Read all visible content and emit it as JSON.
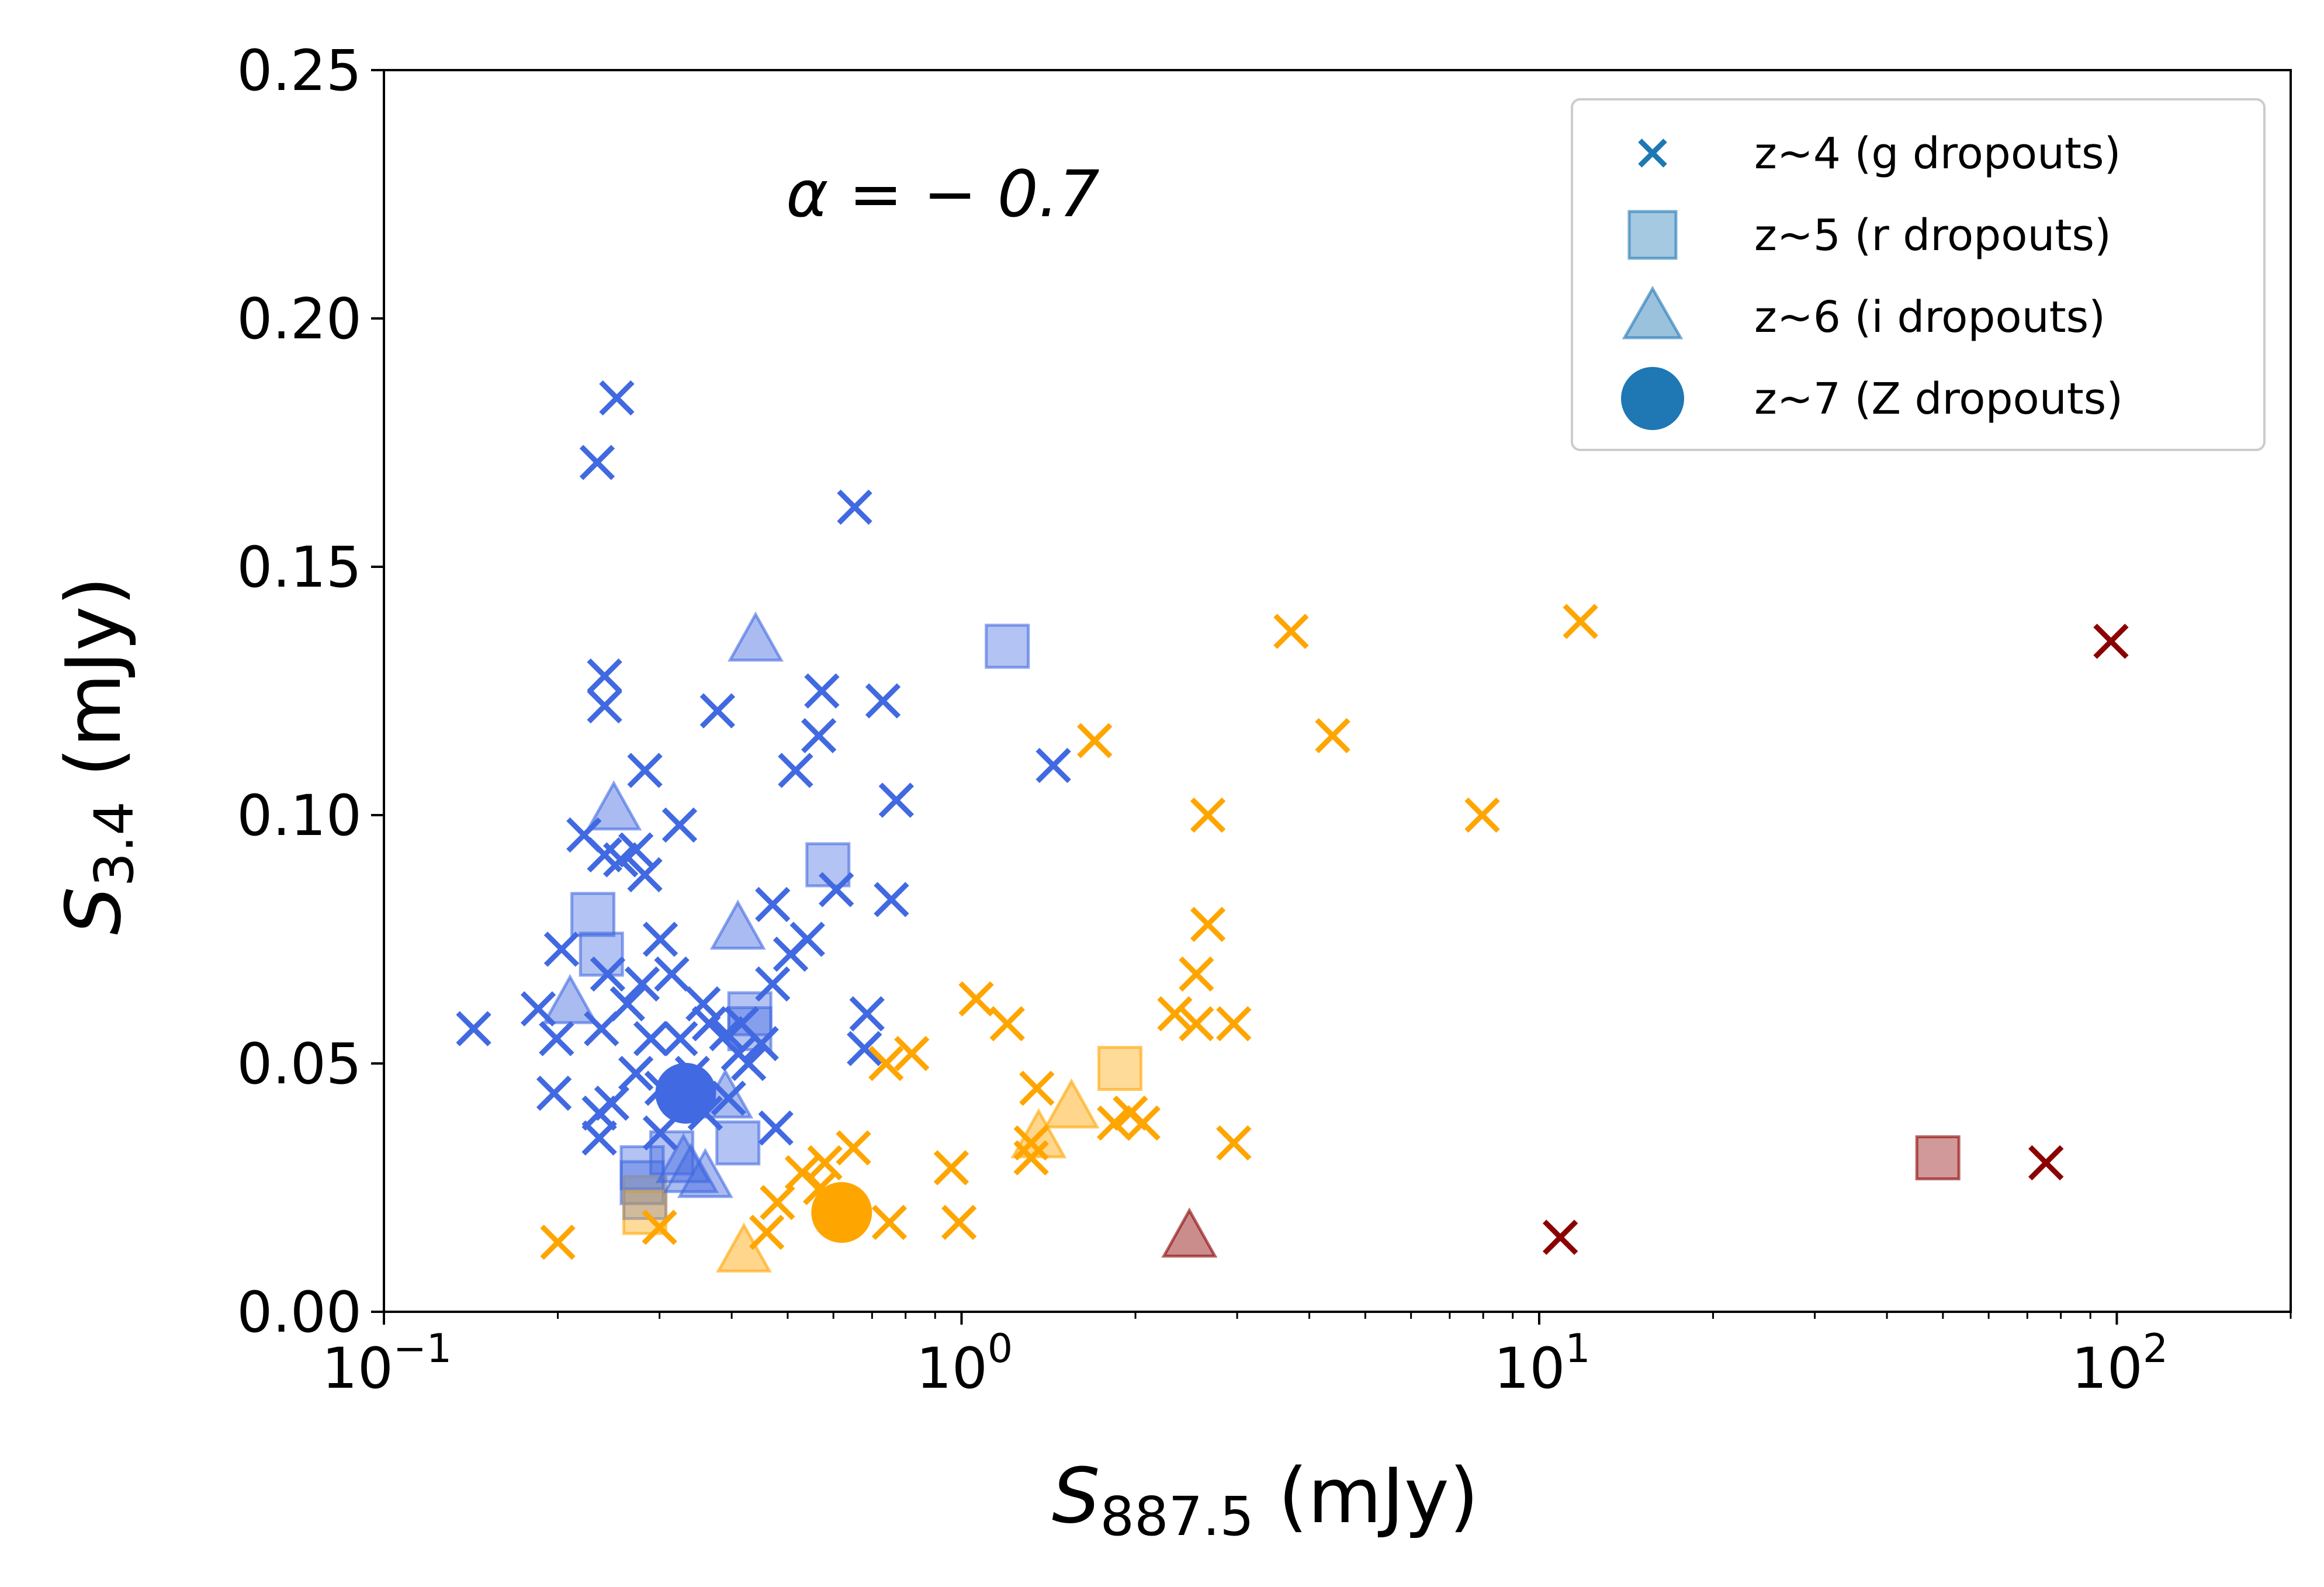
{
  "chart_data": {
    "type": "scatter",
    "title": "",
    "annotation": "α = − 0.7",
    "xlabel": {
      "symbol": "S",
      "sub": "887.5",
      "unit": " (mJy)"
    },
    "ylabel": {
      "symbol": "S",
      "sub": "3.4",
      "unit": " (mJy)"
    },
    "xscale": "log",
    "xlim": [
      0.1,
      200
    ],
    "ylim": [
      0,
      0.25
    ],
    "xticks": [
      {
        "value": 0.1,
        "base": "10",
        "exp": "−1"
      },
      {
        "value": 1,
        "base": "10",
        "exp": "0"
      },
      {
        "value": 10,
        "base": "10",
        "exp": "1"
      },
      {
        "value": 100,
        "base": "10",
        "exp": "2"
      }
    ],
    "yticks": [
      {
        "value": 0,
        "label": "0.00"
      },
      {
        "value": 0.05,
        "label": "0.05"
      },
      {
        "value": 0.1,
        "label": "0.10"
      },
      {
        "value": 0.15,
        "label": "0.15"
      },
      {
        "value": 0.2,
        "label": "0.20"
      },
      {
        "value": 0.25,
        "label": "0.25"
      }
    ],
    "legend_position": "top-right",
    "legend": [
      {
        "label": "z~4 (g dropouts)",
        "marker": "x",
        "color": "#1f77b4"
      },
      {
        "label": "z~5 (r dropouts)",
        "marker": "square",
        "color": "#1f77b4"
      },
      {
        "label": "z~6 (i dropouts)",
        "marker": "triangle",
        "color": "#1f77b4"
      },
      {
        "label": "z~7 (Z dropouts)",
        "marker": "circle",
        "color": "#1f77b4"
      }
    ],
    "colors": {
      "blue": "#4169e1",
      "orange": "#ffa500",
      "darkred": "#8b0000"
    },
    "series": [
      {
        "name": "z~4 blue",
        "marker": "x",
        "color": "#4169e1",
        "points": [
          [
            0.253,
            0.184
          ],
          [
            0.234,
            0.171
          ],
          [
            0.653,
            0.162
          ],
          [
            0.241,
            0.128
          ],
          [
            0.241,
            0.122
          ],
          [
            0.378,
            0.121
          ],
          [
            0.573,
            0.125
          ],
          [
            0.566,
            0.116
          ],
          [
            0.516,
            0.109
          ],
          [
            0.731,
            0.123
          ],
          [
            0.771,
            0.103
          ],
          [
            0.283,
            0.109
          ],
          [
            0.325,
            0.098
          ],
          [
            0.222,
            0.096
          ],
          [
            0.241,
            0.092
          ],
          [
            0.257,
            0.091
          ],
          [
            0.273,
            0.093
          ],
          [
            0.283,
            0.088
          ],
          [
            0.471,
            0.082
          ],
          [
            0.607,
            0.085
          ],
          [
            0.756,
            0.083
          ],
          [
            0.301,
            0.075
          ],
          [
            0.506,
            0.072
          ],
          [
            0.541,
            0.075
          ],
          [
            0.203,
            0.073
          ],
          [
            0.244,
            0.068
          ],
          [
            0.28,
            0.066
          ],
          [
            0.315,
            0.068
          ],
          [
            0.357,
            0.062
          ],
          [
            0.185,
            0.061
          ],
          [
            0.199,
            0.055
          ],
          [
            0.238,
            0.057
          ],
          [
            0.264,
            0.062
          ],
          [
            0.29,
            0.055
          ],
          [
            0.326,
            0.055
          ],
          [
            0.366,
            0.058
          ],
          [
            0.392,
            0.056
          ],
          [
            0.45,
            0.054
          ],
          [
            0.143,
            0.057
          ],
          [
            0.416,
            0.058
          ],
          [
            0.471,
            0.066
          ],
          [
            0.411,
            0.052
          ],
          [
            0.428,
            0.05
          ],
          [
            0.342,
            0.048
          ],
          [
            0.303,
            0.045
          ],
          [
            0.273,
            0.048
          ],
          [
            0.248,
            0.042
          ],
          [
            0.236,
            0.04
          ],
          [
            0.236,
            0.035
          ],
          [
            0.197,
            0.044
          ],
          [
            0.395,
            0.043
          ],
          [
            0.477,
            0.037
          ],
          [
            0.686,
            0.06
          ],
          [
            0.679,
            0.053
          ],
          [
            1.442,
            0.11
          ],
          [
            0.36,
            0.04
          ],
          [
            0.301,
            0.036
          ]
        ]
      },
      {
        "name": "z~4 orange",
        "marker": "x",
        "color": "#ffa500",
        "points": [
          [
            3.72,
            0.137
          ],
          [
            11.79,
            0.139
          ],
          [
            4.39,
            0.116
          ],
          [
            1.7,
            0.115
          ],
          [
            2.67,
            0.1
          ],
          [
            7.97,
            0.1
          ],
          [
            2.67,
            0.078
          ],
          [
            2.55,
            0.068
          ],
          [
            1.06,
            0.063
          ],
          [
            2.34,
            0.06
          ],
          [
            2.55,
            0.058
          ],
          [
            2.96,
            0.058
          ],
          [
            1.2,
            0.058
          ],
          [
            0.82,
            0.052
          ],
          [
            0.74,
            0.05
          ],
          [
            1.35,
            0.045
          ],
          [
            1.96,
            0.04
          ],
          [
            2.06,
            0.038
          ],
          [
            1.84,
            0.038
          ],
          [
            0.96,
            0.029
          ],
          [
            0.58,
            0.03
          ],
          [
            0.65,
            0.033
          ],
          [
            0.48,
            0.022
          ],
          [
            0.75,
            0.018
          ],
          [
            0.99,
            0.018
          ],
          [
            0.46,
            0.016
          ],
          [
            0.3,
            0.017
          ],
          [
            0.2,
            0.014
          ],
          [
            1.32,
            0.034
          ],
          [
            1.32,
            0.031
          ],
          [
            2.96,
            0.034
          ],
          [
            0.53,
            0.028
          ],
          [
            0.57,
            0.025
          ]
        ]
      },
      {
        "name": "z~4 darkred",
        "marker": "x",
        "color": "#8b0000",
        "points": [
          [
            97.7,
            0.135
          ],
          [
            75.4,
            0.03
          ],
          [
            10.88,
            0.015
          ]
        ]
      },
      {
        "name": "z~5 blue",
        "marker": "square",
        "color": "#4169e1",
        "points": [
          [
            1.2,
            0.134
          ],
          [
            0.587,
            0.09
          ],
          [
            0.23,
            0.08
          ],
          [
            0.238,
            0.072
          ],
          [
            0.43,
            0.06
          ],
          [
            0.43,
            0.057
          ],
          [
            0.41,
            0.034
          ],
          [
            0.28,
            0.029
          ],
          [
            0.28,
            0.026
          ],
          [
            0.315,
            0.032
          ]
        ]
      },
      {
        "name": "z~5 orange",
        "marker": "square",
        "color": "#ffa500",
        "points": [
          [
            1.88,
            0.049
          ],
          [
            0.283,
            0.02
          ]
        ]
      },
      {
        "name": "z~5 darkred",
        "marker": "square",
        "color": "#8b0000",
        "points": [
          [
            49.0,
            0.031
          ]
        ]
      },
      {
        "name": "z~5 gray",
        "marker": "square",
        "color": "#8c8c9c",
        "points": [
          [
            0.283,
            0.023
          ]
        ]
      },
      {
        "name": "z~6 blue",
        "marker": "triangle",
        "color": "#4169e1",
        "points": [
          [
            0.44,
            0.135
          ],
          [
            0.25,
            0.101
          ],
          [
            0.41,
            0.077
          ],
          [
            0.21,
            0.062
          ],
          [
            0.33,
            0.03
          ],
          [
            0.34,
            0.028
          ],
          [
            0.36,
            0.027
          ],
          [
            0.39,
            0.043
          ]
        ]
      },
      {
        "name": "z~6 orange",
        "marker": "triangle",
        "color": "#ffa500",
        "points": [
          [
            1.55,
            0.041
          ],
          [
            1.36,
            0.035
          ],
          [
            0.42,
            0.012
          ]
        ]
      },
      {
        "name": "z~6 darkred",
        "marker": "triangle",
        "color": "#8b0000",
        "points": [
          [
            2.48,
            0.015
          ]
        ]
      },
      {
        "name": "z~7 blue",
        "marker": "circle",
        "color": "#4169e1",
        "points": [
          [
            0.333,
            0.044
          ]
        ]
      },
      {
        "name": "z~7 orange",
        "marker": "circle",
        "color": "#ffa500",
        "points": [
          [
            0.62,
            0.02
          ]
        ]
      }
    ]
  }
}
